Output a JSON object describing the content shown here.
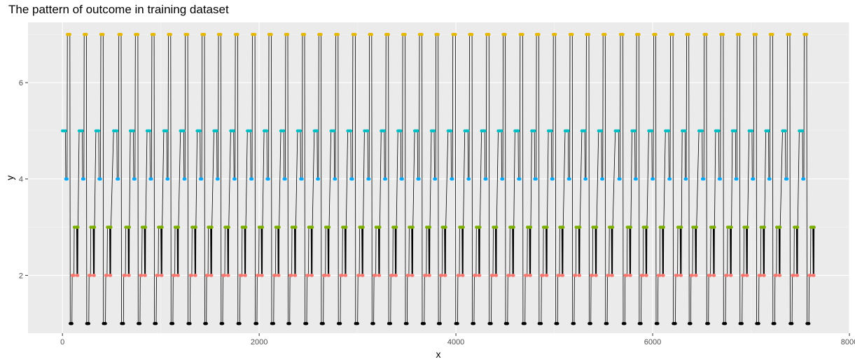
{
  "chart_data": {
    "type": "line",
    "title": "The pattern of outcome in training dataset",
    "xlabel": "x",
    "ylabel": "y",
    "xlim": [
      -350,
      8000
    ],
    "ylim": [
      0.8,
      7.25
    ],
    "x_ticks": [
      0,
      2000,
      4000,
      6000,
      8000
    ],
    "y_ticks": [
      2,
      4,
      6
    ],
    "x_tick_labels": [
      "0",
      "2000",
      "4000",
      "6000",
      "8000"
    ],
    "y_tick_labels": [
      "2",
      "4",
      "6"
    ],
    "grid": true,
    "legend": "none",
    "background": "#ebebeb",
    "line_color": "#000000",
    "level_colors": {
      "1": "#000000",
      "2": "#f8766d",
      "3": "#7cae00",
      "4": "#00a9ff",
      "5": "#00bfc4",
      "6": "#c77cff",
      "7": "#e7b800"
    },
    "cycle_starts": [
      0,
      170,
      340,
      520,
      690,
      860,
      1030,
      1200,
      1370,
      1540,
      1710,
      1880,
      2050,
      2220,
      2390,
      2560,
      2730,
      2900,
      3070,
      3240,
      3410,
      3580,
      3750,
      3920,
      4090,
      4260,
      4430,
      4600,
      4770,
      4940,
      5110,
      5280,
      5450,
      5620,
      5790,
      5960,
      6130,
      6300,
      6470,
      6640,
      6810,
      6980,
      7150,
      7320,
      7490
    ],
    "level_sequence": [
      5,
      4,
      7,
      1,
      2,
      3
    ],
    "x_end": 7730
  }
}
